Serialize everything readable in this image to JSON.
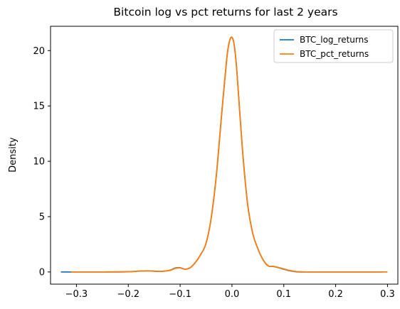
{
  "chart_data": {
    "type": "line",
    "title": "Bitcoin log vs pct returns for last 2 years",
    "xlabel": "",
    "ylabel": "Density",
    "xlim": [
      -0.35,
      0.32
    ],
    "ylim": [
      -1.1,
      22.2
    ],
    "xticks": [
      -0.3,
      -0.2,
      -0.1,
      0.0,
      0.1,
      0.2,
      0.3
    ],
    "xtick_labels": [
      "−0.3",
      "−0.2",
      "−0.1",
      "0.0",
      "0.1",
      "0.2",
      "0.3"
    ],
    "yticks": [
      0,
      5,
      10,
      15,
      20
    ],
    "ytick_labels": [
      "0",
      "5",
      "10",
      "15",
      "20"
    ],
    "grid": false,
    "legend_position": "top-right",
    "series": [
      {
        "name": "BTC_log_returns",
        "color": "#1f77b4",
        "x": [
          -0.33,
          -0.25,
          -0.2,
          -0.18,
          -0.16,
          -0.14,
          -0.12,
          -0.11,
          -0.1,
          -0.09,
          -0.08,
          -0.07,
          -0.06,
          -0.05,
          -0.04,
          -0.03,
          -0.02,
          -0.01,
          -0.005,
          0.0,
          0.005,
          0.01,
          0.02,
          0.03,
          0.04,
          0.05,
          0.06,
          0.07,
          0.08,
          0.09,
          0.1,
          0.11,
          0.12,
          0.13,
          0.15,
          0.2,
          0.29
        ],
        "y": [
          0.0,
          0.0,
          0.02,
          0.08,
          0.1,
          0.05,
          0.15,
          0.35,
          0.38,
          0.25,
          0.4,
          0.9,
          1.6,
          2.6,
          4.9,
          8.8,
          14.2,
          19.3,
          20.8,
          21.2,
          20.3,
          17.8,
          11.2,
          6.2,
          3.5,
          2.1,
          1.1,
          0.55,
          0.5,
          0.38,
          0.25,
          0.12,
          0.04,
          0.0,
          0.0,
          0.0,
          0.0
        ]
      },
      {
        "name": "BTC_pct_returns",
        "color": "#ff7f0e",
        "x": [
          -0.31,
          -0.25,
          -0.2,
          -0.18,
          -0.16,
          -0.14,
          -0.12,
          -0.11,
          -0.1,
          -0.09,
          -0.08,
          -0.07,
          -0.06,
          -0.05,
          -0.04,
          -0.03,
          -0.02,
          -0.01,
          -0.005,
          0.0,
          0.005,
          0.01,
          0.02,
          0.03,
          0.04,
          0.05,
          0.06,
          0.07,
          0.08,
          0.09,
          0.1,
          0.11,
          0.12,
          0.13,
          0.15,
          0.2,
          0.3
        ],
        "y": [
          0.0,
          0.0,
          0.02,
          0.07,
          0.09,
          0.05,
          0.14,
          0.32,
          0.36,
          0.25,
          0.4,
          0.9,
          1.6,
          2.6,
          4.9,
          8.8,
          14.2,
          19.3,
          20.8,
          21.2,
          20.3,
          17.8,
          11.2,
          6.2,
          3.5,
          2.1,
          1.1,
          0.55,
          0.5,
          0.4,
          0.28,
          0.15,
          0.06,
          0.02,
          0.0,
          0.0,
          0.0
        ]
      }
    ]
  }
}
